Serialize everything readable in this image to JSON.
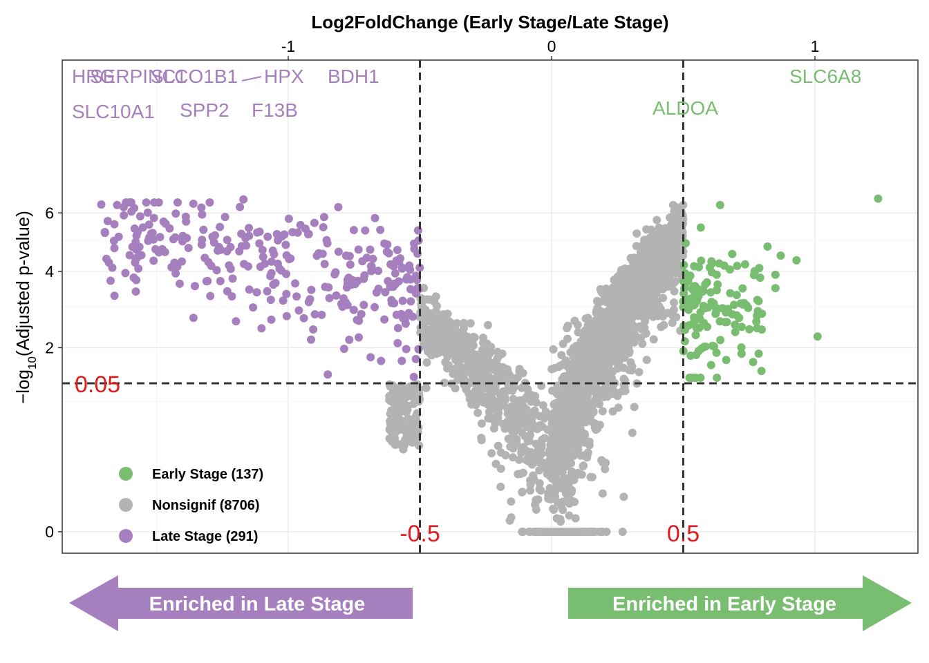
{
  "colors": {
    "late": "#A57FBE",
    "nonsig": "#B3B3B3",
    "early": "#79BD71",
    "threshold": "#E41A1C",
    "grid": "#EBEBEB",
    "dashed": "#333333"
  },
  "chart_data": {
    "type": "scatter",
    "x_axis": {
      "title": "Log2FoldChange (Early Stage/Late Stage)",
      "position": "top",
      "ticks": [
        -1,
        0,
        1
      ],
      "tick_labels": [
        "-1",
        "0",
        "1"
      ],
      "range": [
        -1.85,
        1.4
      ]
    },
    "y_axis": {
      "title": "−log10(Adjusted p-value)",
      "title_prefix": "−log",
      "title_sub": "10",
      "title_suffix": "(Adjusted p-value)",
      "scale": "sqrt",
      "ticks": [
        0,
        2,
        4,
        6
      ],
      "tick_labels": [
        "0",
        "2",
        "4",
        "6"
      ],
      "range": [
        0,
        6.9
      ]
    },
    "grid": true,
    "thresholds": {
      "fc": [
        -0.5,
        0.5
      ],
      "fc_labels": [
        "-0.5",
        "0.5"
      ],
      "p_value": 0.05,
      "p_label": "0.05"
    },
    "series": [
      {
        "name": "Early Stage (137)",
        "group": "early",
        "count": 137
      },
      {
        "name": "Nonsignif (8706)",
        "group": "nonsig",
        "count": 8706
      },
      {
        "name": "Late Stage (291)",
        "group": "late",
        "count": 291
      }
    ],
    "legend_position": "bottom-left",
    "labeled_points": [
      {
        "label": "HRG",
        "x": -1.71,
        "y": 6.32,
        "group": "late"
      },
      {
        "label": "SERPINC1",
        "x": -1.65,
        "y": 6.3,
        "group": "late"
      },
      {
        "label": "SLC10A1",
        "x": -1.66,
        "y": 4.75,
        "group": "late"
      },
      {
        "label": "SLCO1B1",
        "x": -1.36,
        "y": 6.35,
        "group": "late"
      },
      {
        "label": "SPP2",
        "x": -1.33,
        "y": 6.2,
        "group": "late"
      },
      {
        "label": "HPX",
        "x": -1.17,
        "y": 6.52,
        "group": "late"
      },
      {
        "label": "F13B",
        "x": -1.24,
        "y": 5.85,
        "group": "late"
      },
      {
        "label": "BDH1",
        "x": -0.81,
        "y": 6.22,
        "group": "late"
      },
      {
        "label": "ALDOA",
        "x": 0.64,
        "y": 6.3,
        "group": "early"
      },
      {
        "label": "SLC6A8",
        "x": 1.24,
        "y": 6.55,
        "group": "early"
      }
    ]
  },
  "arrows": {
    "left_label": "Enriched in Late Stage",
    "right_label": "Enriched in Early Stage"
  }
}
